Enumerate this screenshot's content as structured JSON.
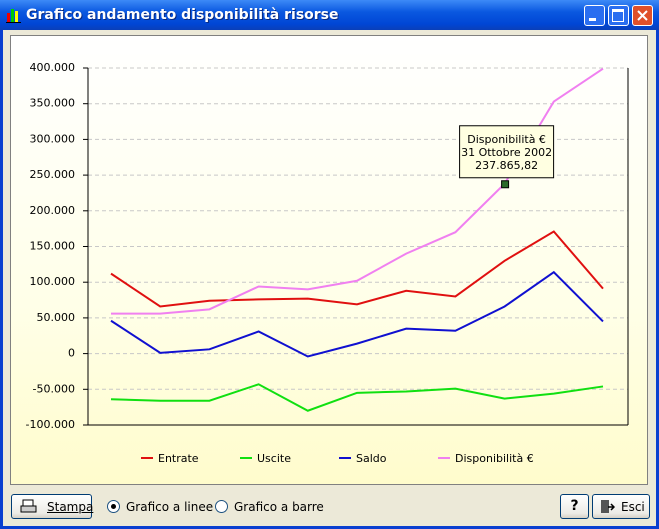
{
  "window": {
    "title": "Grafico andamento disponibilità risorse"
  },
  "chart_data": {
    "type": "line",
    "categories": [
      null,
      null,
      null,
      null,
      null,
      null,
      null,
      null,
      null,
      null,
      null
    ],
    "series": [
      {
        "name": "Entrate",
        "color": "#e01010",
        "values": [
          112000,
          66000,
          74000,
          76000,
          77000,
          69000,
          88000,
          80000,
          130000,
          171000,
          91000
        ]
      },
      {
        "name": "Uscite",
        "color": "#10e010",
        "values": [
          -64000,
          -66000,
          -66000,
          -43000,
          -80000,
          -55000,
          -53000,
          -49000,
          -63000,
          -56000,
          -46000
        ]
      },
      {
        "name": "Saldo",
        "color": "#1010d0",
        "values": [
          46000,
          1000,
          6000,
          31000,
          -4000,
          14000,
          35000,
          32000,
          66000,
          114000,
          45000
        ]
      },
      {
        "name": "Disponibilità €",
        "color": "#f080f0",
        "values": [
          56000,
          56000,
          62000,
          94000,
          90000,
          102000,
          140000,
          170000,
          237865.82,
          353000,
          399000
        ]
      }
    ],
    "ylim": [
      -100000,
      400000
    ],
    "yticks": [
      {
        "value": -100000,
        "label": "-100.000"
      },
      {
        "value": -50000,
        "label": "-50.000"
      },
      0,
      {
        "value": 50000,
        "label": "50.000"
      },
      {
        "value": 100000,
        "label": "100.000"
      },
      {
        "value": 150000,
        "label": "150.000"
      },
      {
        "value": 200000,
        "label": "200.000"
      },
      {
        "value": 250000,
        "label": "250.000"
      },
      {
        "value": 300000,
        "label": "300.000"
      },
      {
        "value": 350000,
        "label": "350.000"
      },
      {
        "value": 400000,
        "label": "400.000"
      }
    ],
    "grid": true,
    "tooltip": {
      "lines": [
        "Disponibilità €",
        "31 Ottobre 2002",
        "237.865,82"
      ]
    }
  },
  "controls": {
    "print": "Stampa",
    "lines": "Grafico a linee",
    "bars": "Grafico a barre",
    "help": "?",
    "exit": "Esci"
  }
}
